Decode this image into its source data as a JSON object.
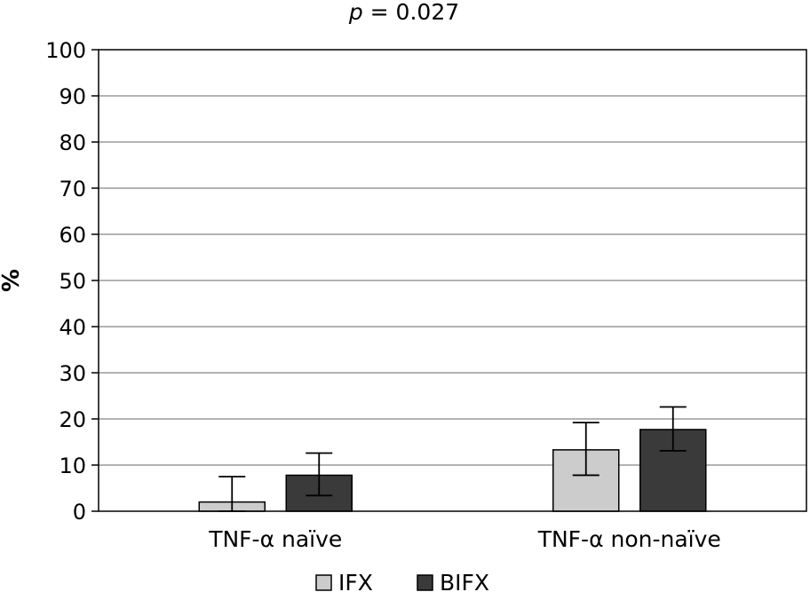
{
  "chart_data": {
    "type": "bar",
    "title_p": "p",
    "title_rest": " = 0.027",
    "ylabel": "%",
    "xlabel": "",
    "ylim": [
      0,
      100
    ],
    "yticks": [
      0,
      10,
      20,
      30,
      40,
      50,
      60,
      70,
      80,
      90,
      100
    ],
    "grid": true,
    "legend_position": "bottom",
    "categories": [
      "TNF-α naïve",
      "TNF-α non-naïve"
    ],
    "series": [
      {
        "name": "IFX",
        "color": "#cccccc",
        "values": [
          2,
          13.3
        ],
        "error_low": [
          0,
          7.8
        ],
        "error_high": [
          7.5,
          19.2
        ]
      },
      {
        "name": "BIFX",
        "color": "#3a3a3a",
        "values": [
          7.8,
          17.7
        ],
        "error_low": [
          3.4,
          13.1
        ],
        "error_high": [
          12.6,
          22.6
        ]
      }
    ]
  }
}
